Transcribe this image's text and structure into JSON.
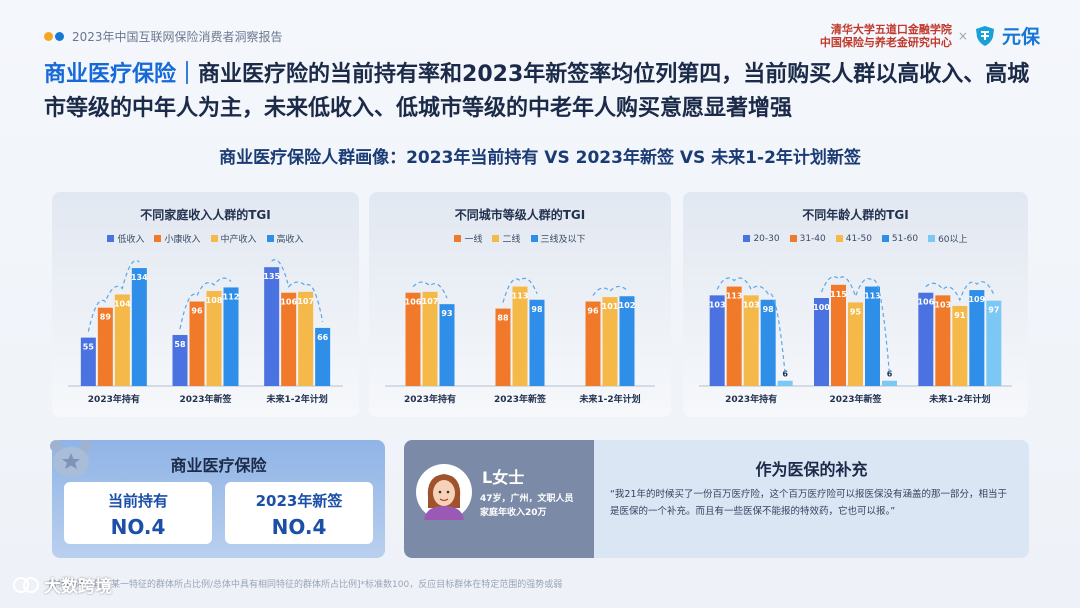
{
  "header": {
    "report_name": "2023年中国互联网保险消费者洞察报告",
    "dot_colors": [
      "#f5a623",
      "#1677d6"
    ],
    "org_line1": "清华大学五道口金融学院",
    "org_line2": "中国保险与养老金研究中心",
    "org_separator": "×",
    "brand_name": "元保",
    "brand_icon": "shield-logo-icon"
  },
  "headline": {
    "tag": "商业医疗保险｜",
    "text": "商业医疗险的当前持有率和2023年新签率均位列第四，当前购买人群以高收入、高城市等级的中年人为主，未来低收入、低城市等级的中老年人购买意愿显著增强"
  },
  "subtitle": "商业医疗保险人群画像：2023年当前持有 VS 2023年新签 VS 未来1-2年计划新签",
  "chart_data": [
    {
      "type": "bar",
      "title": "不同家庭收入人群的TGI",
      "categories": [
        "2023年持有",
        "2023年新签",
        "未来1-2年计划"
      ],
      "series": [
        {
          "name": "低收入",
          "color": "#4a72e0",
          "values": [
            55,
            58,
            135
          ]
        },
        {
          "name": "小康收入",
          "color": "#f07a2a",
          "values": [
            89,
            96,
            106
          ]
        },
        {
          "name": "中产收入",
          "color": "#f5b94a",
          "values": [
            104,
            108,
            107
          ]
        },
        {
          "name": "高收入",
          "color": "#2f8fe8",
          "values": [
            134,
            112,
            66
          ]
        }
      ],
      "ylim": [
        0,
        150
      ],
      "legend": "top"
    },
    {
      "type": "bar",
      "title": "不同城市等级人群的TGI",
      "categories": [
        "2023年持有",
        "2023年新签",
        "未来1-2年计划"
      ],
      "series": [
        {
          "name": "一线",
          "color": "#f07a2a",
          "values": [
            106,
            88,
            96
          ]
        },
        {
          "name": "二线",
          "color": "#f5b94a",
          "values": [
            107,
            113,
            101
          ]
        },
        {
          "name": "三线及以下",
          "color": "#2f8fe8",
          "values": [
            93,
            98,
            102
          ]
        }
      ],
      "ylim": [
        0,
        150
      ],
      "legend": "top"
    },
    {
      "type": "bar",
      "title": "不同年龄人群的TGI",
      "categories": [
        "2023年持有",
        "2023年新签",
        "未来1-2年计划"
      ],
      "series": [
        {
          "name": "20-30",
          "color": "#4a72e0",
          "values": [
            103,
            100,
            106
          ]
        },
        {
          "name": "31-40",
          "color": "#f07a2a",
          "values": [
            113,
            115,
            103
          ]
        },
        {
          "name": "41-50",
          "color": "#f5b94a",
          "values": [
            103,
            95,
            91
          ]
        },
        {
          "name": "51-60",
          "color": "#2f8fe8",
          "values": [
            98,
            113,
            109
          ]
        },
        {
          "name": "60以上",
          "color": "#7cc8f5",
          "values": [
            6,
            6,
            97
          ]
        }
      ],
      "ylim": [
        0,
        150
      ],
      "legend": "top"
    }
  ],
  "summary": {
    "title": "商业医疗保险",
    "holding_label": "当前持有",
    "holding_value": "NO.4",
    "new_label": "2023年新签",
    "new_value": "NO.4",
    "accent": "#1b4fa8"
  },
  "persona": {
    "name": "L女士",
    "info_line1": "47岁，广州，文职人员",
    "info_line2": "家庭年收入20万",
    "quote_title": "作为医保的补充",
    "quote": "“我21年的时候买了一份百万医疗险，这个百万医疗险可以报医保没有涵盖的那一部分，相当于是医保的一个补充。而且有一些医保不能报的特效药，它也可以报。”"
  },
  "footnote": "目标群体中具有某一特征的群体所占比例/总体中具有相同特征的群体所占比例]*标准数100，反应目标群体在特定范围的强势或弱",
  "watermark": "大数跨境"
}
